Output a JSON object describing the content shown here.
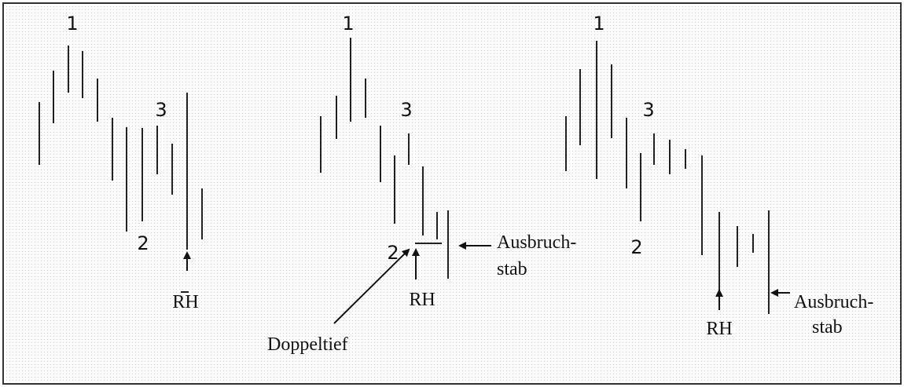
{
  "panels": [
    {
      "points": [
        "1",
        "2",
        "3"
      ],
      "hook": "RH"
    },
    {
      "points": [
        "1",
        "2",
        "3"
      ],
      "hook": "RH",
      "breakout": [
        "Ausbruch-",
        "stab"
      ],
      "note": "Doppeltief"
    },
    {
      "points": [
        "1",
        "2",
        "3"
      ],
      "hook": "RH",
      "breakout": [
        "Ausbruch-",
        "stab"
      ]
    }
  ]
}
